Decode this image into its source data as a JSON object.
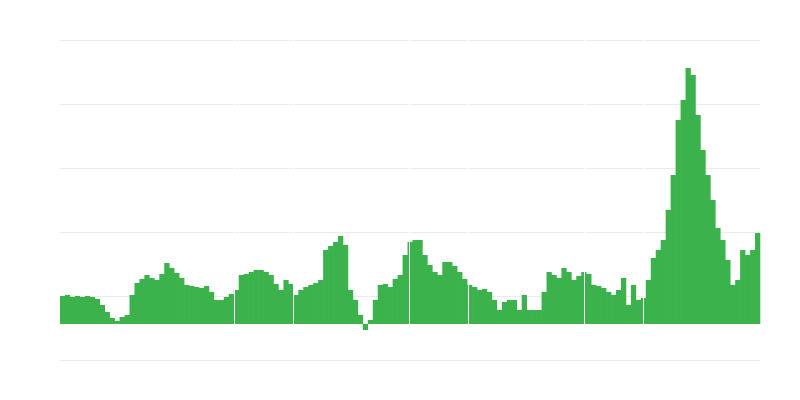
{
  "chart_data": {
    "type": "bar",
    "values": [
      28,
      29,
      27,
      28,
      27,
      28,
      27,
      25,
      19,
      12,
      6,
      3,
      7,
      9,
      29,
      41,
      45,
      49,
      46,
      44,
      50,
      61,
      56,
      51,
      46,
      39,
      38,
      37,
      36,
      38,
      32,
      24,
      24,
      27,
      30,
      34,
      49,
      50,
      52,
      54,
      54,
      52,
      49,
      40,
      34,
      44,
      40,
      29,
      34,
      37,
      39,
      41,
      44,
      74,
      78,
      82,
      88,
      79,
      34,
      24,
      9,
      -6,
      4,
      24,
      39,
      40,
      37,
      45,
      49,
      69,
      82,
      84,
      84,
      69,
      59,
      52,
      49,
      62,
      62,
      58,
      52,
      45,
      39,
      37,
      34,
      35,
      32,
      24,
      14,
      22,
      24,
      24,
      14,
      29,
      14,
      14,
      14,
      32,
      52,
      49,
      46,
      56,
      52,
      44,
      48,
      52,
      50,
      39,
      38,
      36,
      32,
      29,
      34,
      46,
      19,
      39,
      24,
      26,
      44,
      66,
      74,
      84,
      114,
      149,
      204,
      224,
      256,
      249,
      209,
      174,
      149,
      124,
      96,
      84,
      64,
      39,
      44,
      74,
      69,
      74,
      91
    ],
    "color": "#3bb24b",
    "ylim": [
      -36,
      284
    ],
    "yticks": [
      -36,
      28,
      92,
      156,
      220,
      284
    ],
    "grid": true
  }
}
